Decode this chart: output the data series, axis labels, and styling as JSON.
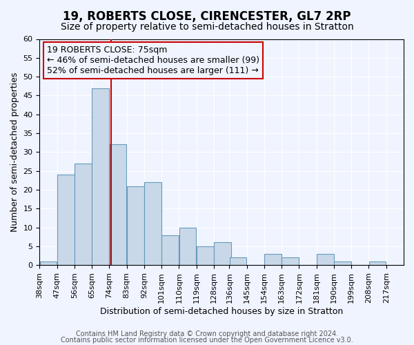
{
  "title": "19, ROBERTS CLOSE, CIRENCESTER, GL7 2RP",
  "subtitle": "Size of property relative to semi-detached houses in Stratton",
  "xlabel": "Distribution of semi-detached houses by size in Stratton",
  "ylabel": "Number of semi-detached properties",
  "footer_line1": "Contains HM Land Registry data © Crown copyright and database right 2024.",
  "footer_line2": "Contains public sector information licensed under the Open Government Licence v3.0.",
  "bin_labels": [
    "38sqm",
    "47sqm",
    "56sqm",
    "65sqm",
    "74sqm",
    "83sqm",
    "92sqm",
    "101sqm",
    "110sqm",
    "119sqm",
    "128sqm",
    "136sqm",
    "145sqm",
    "154sqm",
    "163sqm",
    "172sqm",
    "181sqm",
    "190sqm",
    "199sqm",
    "208sqm",
    "217sqm"
  ],
  "bin_edges": [
    38,
    47,
    56,
    65,
    74,
    83,
    92,
    101,
    110,
    119,
    128,
    136,
    145,
    154,
    163,
    172,
    181,
    190,
    199,
    208,
    217
  ],
  "counts": [
    1,
    24,
    27,
    47,
    32,
    21,
    22,
    8,
    10,
    5,
    6,
    2,
    0,
    3,
    2,
    0,
    3,
    1,
    0,
    1
  ],
  "ylim": [
    0,
    60
  ],
  "yticks": [
    0,
    5,
    10,
    15,
    20,
    25,
    30,
    35,
    40,
    45,
    50,
    55,
    60
  ],
  "property_size": 75,
  "property_label": "19 ROBERTS CLOSE: 75sqm",
  "pct_smaller": 46,
  "count_smaller": 99,
  "pct_larger": 52,
  "count_larger": 111,
  "bar_color": "#c8d8e8",
  "bar_edge_color": "#6699bb",
  "vline_color": "#cc0000",
  "box_edge_color": "#cc0000",
  "background_color": "#f0f4ff",
  "grid_color": "#ffffff",
  "title_fontsize": 12,
  "subtitle_fontsize": 10,
  "axis_label_fontsize": 9,
  "tick_fontsize": 8,
  "annotation_fontsize": 9,
  "footer_fontsize": 7
}
